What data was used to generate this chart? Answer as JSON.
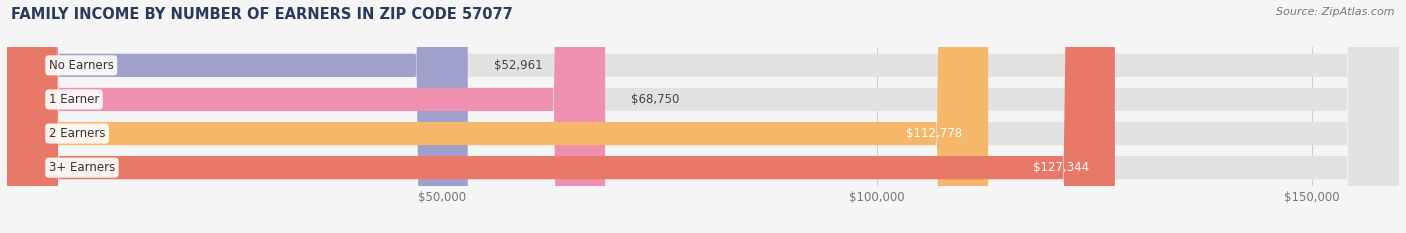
{
  "title": "FAMILY INCOME BY NUMBER OF EARNERS IN ZIP CODE 57077",
  "source": "Source: ZipAtlas.com",
  "categories": [
    "No Earners",
    "1 Earner",
    "2 Earners",
    "3+ Earners"
  ],
  "values": [
    52961,
    68750,
    112778,
    127344
  ],
  "labels": [
    "$52,961",
    "$68,750",
    "$112,778",
    "$127,344"
  ],
  "bar_colors": [
    "#a0a0cc",
    "#f090b0",
    "#f5b86a",
    "#e87868"
  ],
  "bar_bg_color": "#e2e2e2",
  "background_color": "#f5f5f5",
  "xlim_min": 0,
  "xlim_max": 160000,
  "xticks": [
    50000,
    100000,
    150000
  ],
  "xticklabels": [
    "$50,000",
    "$100,000",
    "$150,000"
  ],
  "title_fontsize": 10.5,
  "source_fontsize": 8,
  "tick_fontsize": 8.5,
  "bar_label_fontsize": 8.5,
  "category_fontsize": 8.5,
  "label_outside_threshold": 70000,
  "label_inside_color": "white",
  "label_outside_color": "#444444",
  "category_text_color": "#333333",
  "title_color": "#2a3a5a",
  "source_color": "#777777",
  "tick_color": "#777777"
}
